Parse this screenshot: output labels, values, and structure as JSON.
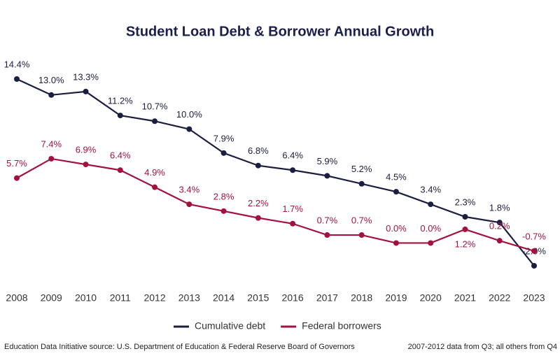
{
  "chart_data": {
    "type": "line",
    "title": "Student Loan Debt & Borrower Annual Growth",
    "categories": [
      "2008",
      "2009",
      "2010",
      "2011",
      "2012",
      "2013",
      "2014",
      "2015",
      "2016",
      "2017",
      "2018",
      "2019",
      "2020",
      "2021",
      "2022",
      "2023"
    ],
    "series": [
      {
        "name": "Cumulative debt",
        "color": "#1b1f3f",
        "values": [
          14.4,
          13.0,
          13.3,
          11.2,
          10.7,
          10.0,
          7.9,
          6.8,
          6.4,
          5.9,
          5.2,
          4.5,
          3.4,
          2.3,
          1.8,
          -2.0
        ],
        "value_labels": [
          "14.4%",
          "13.0%",
          "13.3%",
          "11.2%",
          "10.7%",
          "10.0%",
          "7.9%",
          "6.8%",
          "6.4%",
          "5.9%",
          "5.2%",
          "4.5%",
          "3.4%",
          "2.3%",
          "1.8%",
          "-2.0%"
        ]
      },
      {
        "name": "Federal borrowers",
        "color": "#a3123f",
        "values": [
          5.7,
          7.4,
          6.9,
          6.4,
          4.9,
          3.4,
          2.8,
          2.2,
          1.7,
          0.7,
          0.7,
          0.0,
          0.0,
          1.2,
          0.2,
          -0.7
        ],
        "value_labels": [
          "5.7%",
          "7.4%",
          "6.9%",
          "6.4%",
          "4.9%",
          "3.4%",
          "2.8%",
          "2.2%",
          "1.7%",
          "0.7%",
          "0.7%",
          "0.0%",
          "0.0%",
          "1.2%",
          "0.2%",
          "-0.7%"
        ]
      }
    ],
    "legend": "bottom",
    "source": "Education Data Initiative source: U.S. Department of Education & Federal Reserve Board of Governors",
    "note": "2007-2012 data from Q3; all others from Q4"
  }
}
